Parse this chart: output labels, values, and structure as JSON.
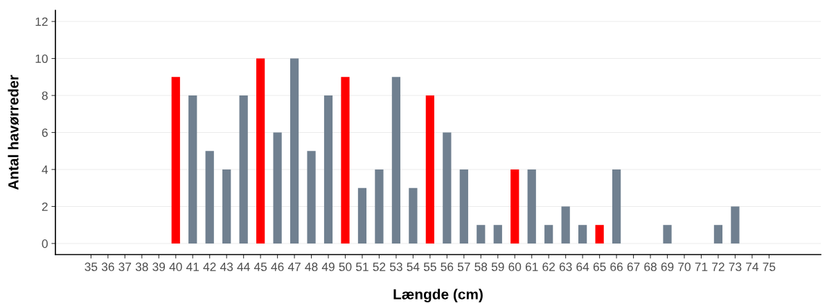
{
  "chart_data": {
    "type": "bar",
    "xlabel": "Længde (cm)",
    "ylabel": "Antal havørreder",
    "categories": [
      "35",
      "36",
      "37",
      "38",
      "39",
      "40",
      "41",
      "42",
      "43",
      "44",
      "45",
      "46",
      "47",
      "48",
      "49",
      "50",
      "51",
      "52",
      "53",
      "54",
      "55",
      "56",
      "57",
      "58",
      "59",
      "60",
      "61",
      "62",
      "63",
      "64",
      "65",
      "66",
      "67",
      "68",
      "69",
      "70",
      "71",
      "72",
      "73",
      "74",
      "75"
    ],
    "values": [
      0,
      0,
      0,
      0,
      0,
      9,
      8,
      5,
      4,
      8,
      10,
      6,
      10,
      5,
      8,
      9,
      3,
      4,
      9,
      3,
      8,
      6,
      4,
      1,
      1,
      4,
      4,
      1,
      2,
      1,
      1,
      4,
      0,
      0,
      1,
      0,
      0,
      1,
      2,
      0,
      0
    ],
    "colors": [
      "#708090",
      "#708090",
      "#708090",
      "#708090",
      "#708090",
      "#ff0000",
      "#708090",
      "#708090",
      "#708090",
      "#708090",
      "#ff0000",
      "#708090",
      "#708090",
      "#708090",
      "#708090",
      "#ff0000",
      "#708090",
      "#708090",
      "#708090",
      "#708090",
      "#ff0000",
      "#708090",
      "#708090",
      "#708090",
      "#708090",
      "#ff0000",
      "#708090",
      "#708090",
      "#708090",
      "#708090",
      "#ff0000",
      "#708090",
      "#708090",
      "#708090",
      "#708090",
      "#708090",
      "#708090",
      "#708090",
      "#708090",
      "#708090",
      "#708090"
    ],
    "ylim": [
      -0.6,
      12.6
    ],
    "yticks": [
      0,
      2,
      4,
      6,
      8,
      10,
      12
    ],
    "grid": "y"
  }
}
